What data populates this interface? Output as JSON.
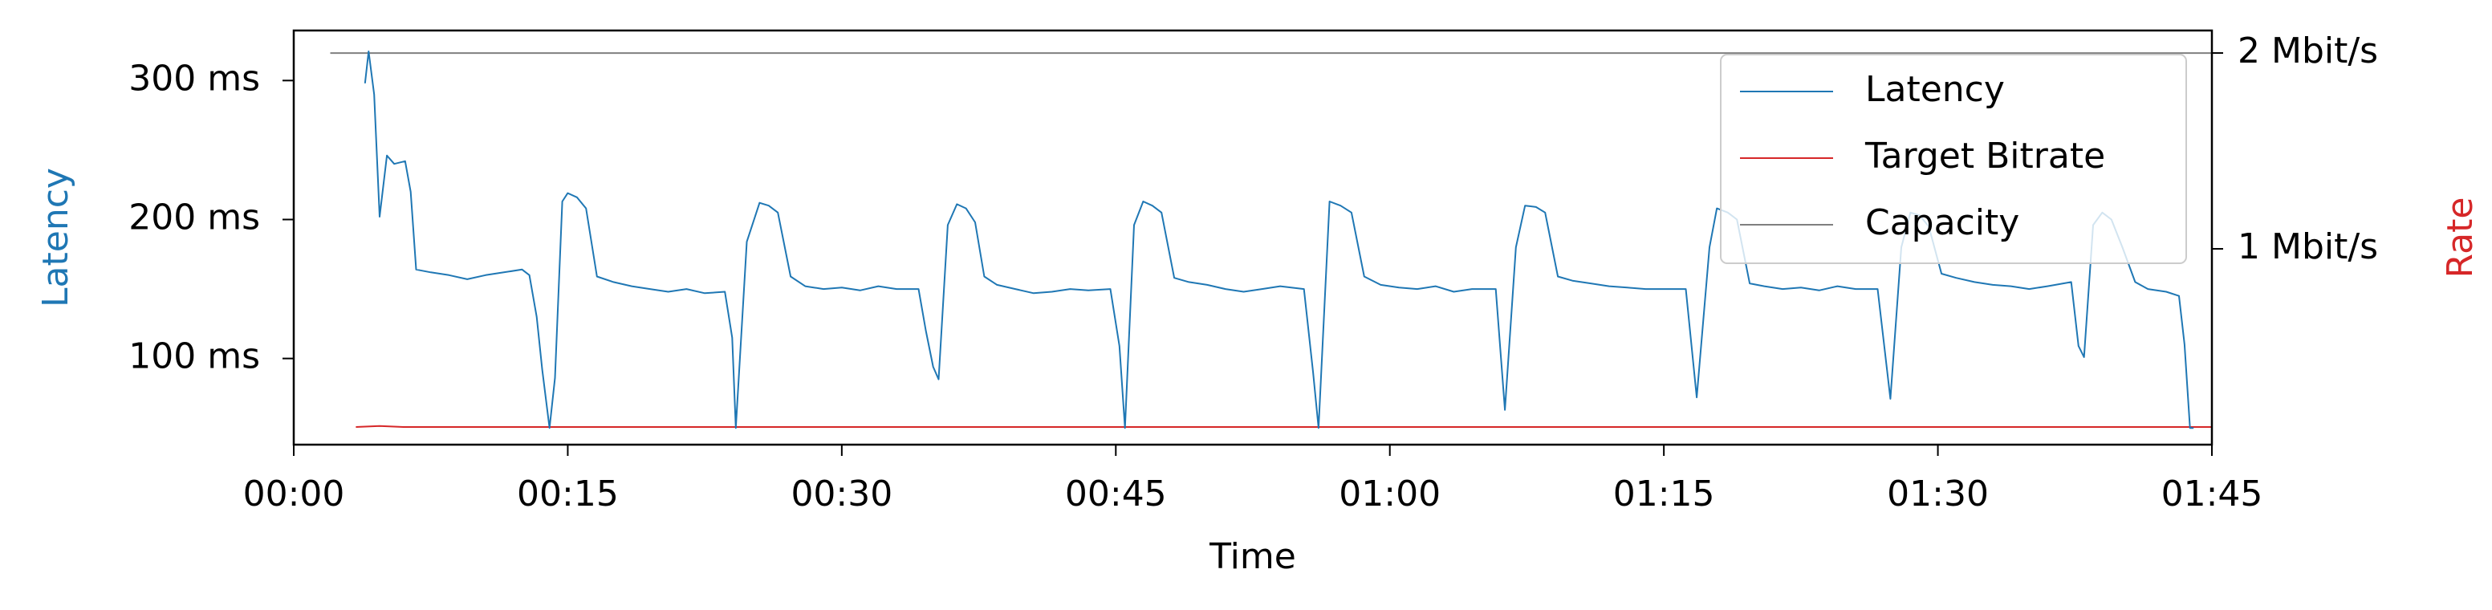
{
  "chart_data": {
    "type": "line",
    "xlabel": "Time",
    "ylabel": "Latency",
    "y2label": "Rate",
    "xlim": [
      0,
      105
    ],
    "xticks": [
      {
        "value": 0,
        "label": "00:00"
      },
      {
        "value": 15,
        "label": "00:15"
      },
      {
        "value": 30,
        "label": "00:30"
      },
      {
        "value": 45,
        "label": "00:45"
      },
      {
        "value": 60,
        "label": "01:00"
      },
      {
        "value": 75,
        "label": "01:15"
      },
      {
        "value": 90,
        "label": "01:30"
      },
      {
        "value": 105,
        "label": "01:45"
      }
    ],
    "ylim": [
      38,
      336
    ],
    "yticks": [
      {
        "value": 100,
        "label": "100 ms"
      },
      {
        "value": 200,
        "label": "200 ms"
      },
      {
        "value": 300,
        "label": "300 ms"
      }
    ],
    "y2lim": [
      0,
      2.115
    ],
    "y2ticks": [
      {
        "value": 1,
        "label": "1 Mbit/s"
      },
      {
        "value": 2,
        "label": "2 Mbit/s"
      }
    ],
    "legend": "upper right",
    "series": [
      {
        "name": "Latency",
        "color": "#1f77b4",
        "x": [
          3.9,
          4.1,
          4.4,
          4.7,
          5.1,
          5.5,
          6.1,
          6.4,
          6.7,
          7.5,
          8.5,
          9.5,
          10.5,
          11.5,
          12.5,
          12.9,
          13.3,
          13.6,
          14.0,
          14.3,
          14.7,
          15.0,
          15.5,
          16.0,
          16.6,
          17.5,
          18.5,
          19.5,
          20.5,
          21.5,
          22.5,
          23.6,
          24.0,
          24.2,
          24.8,
          25.5,
          26.0,
          26.5,
          27.2,
          28,
          29,
          30,
          31,
          32,
          33,
          34.2,
          34.6,
          35.0,
          35.3,
          35.8,
          36.3,
          36.8,
          37.3,
          37.8,
          38.5,
          39.5,
          40.5,
          41.5,
          42.5,
          43.5,
          44.7,
          45.2,
          45.5,
          46.0,
          46.5,
          47.0,
          47.5,
          48.2,
          49,
          50,
          51,
          52,
          53,
          54,
          55.3,
          55.8,
          56.1,
          56.7,
          57.3,
          57.9,
          58.6,
          59.5,
          60.5,
          61.5,
          62.5,
          63.5,
          64.5,
          65.8,
          66.3,
          66.9,
          67.4,
          68.0,
          68.5,
          69.2,
          70,
          71,
          72,
          73,
          74,
          75,
          76.2,
          76.8,
          77.5,
          77.9,
          78.5,
          79.0,
          79.7,
          80.5,
          81.5,
          82.5,
          83.5,
          84.5,
          85.5,
          86.7,
          87.4,
          88.0,
          88.5,
          89.0,
          89.5,
          90.2,
          91,
          92,
          93,
          94,
          95,
          96,
          97.3,
          97.7,
          98.0,
          98.5,
          99.0,
          99.5,
          100.1,
          100.8,
          101.5,
          102.5,
          103.2,
          103.5,
          103.8,
          104.0
        ],
        "values": [
          298,
          321,
          290,
          202,
          246,
          240,
          242,
          220,
          164,
          162,
          160,
          157,
          160,
          162,
          164,
          160,
          130,
          92,
          50,
          86,
          213,
          219,
          216,
          208,
          159,
          155,
          152,
          150,
          148,
          150,
          147,
          148,
          115,
          50,
          184,
          212,
          210,
          205,
          159,
          152,
          150,
          151,
          149,
          152,
          150,
          150,
          120,
          94,
          85,
          196,
          211,
          208,
          198,
          159,
          153,
          150,
          147,
          148,
          150,
          149,
          150,
          109,
          50,
          196,
          213,
          210,
          205,
          158,
          155,
          153,
          150,
          148,
          150,
          152,
          150,
          90,
          50,
          213,
          210,
          205,
          159,
          153,
          151,
          150,
          152,
          148,
          150,
          150,
          63,
          180,
          210,
          209,
          205,
          159,
          156,
          154,
          152,
          151,
          150,
          150,
          150,
          72,
          180,
          208,
          205,
          200,
          154,
          152,
          150,
          151,
          149,
          152,
          150,
          150,
          71,
          180,
          205,
          203,
          195,
          161,
          158,
          155,
          153,
          152,
          150,
          152,
          155,
          109,
          101,
          196,
          205,
          200,
          180,
          155,
          150,
          148,
          145,
          110,
          50,
          50
        ]
      },
      {
        "name": "Target Bitrate",
        "color": "#d62728",
        "axis": "y2",
        "x": [
          3.4,
          4.7,
          6.0,
          105
        ],
        "values": [
          0.09,
          0.095,
          0.09,
          0.09
        ]
      },
      {
        "name": "Capacity",
        "color": "#7f7f7f",
        "axis": "y2",
        "x": [
          2.0,
          105
        ],
        "values": [
          2,
          2
        ]
      }
    ]
  }
}
